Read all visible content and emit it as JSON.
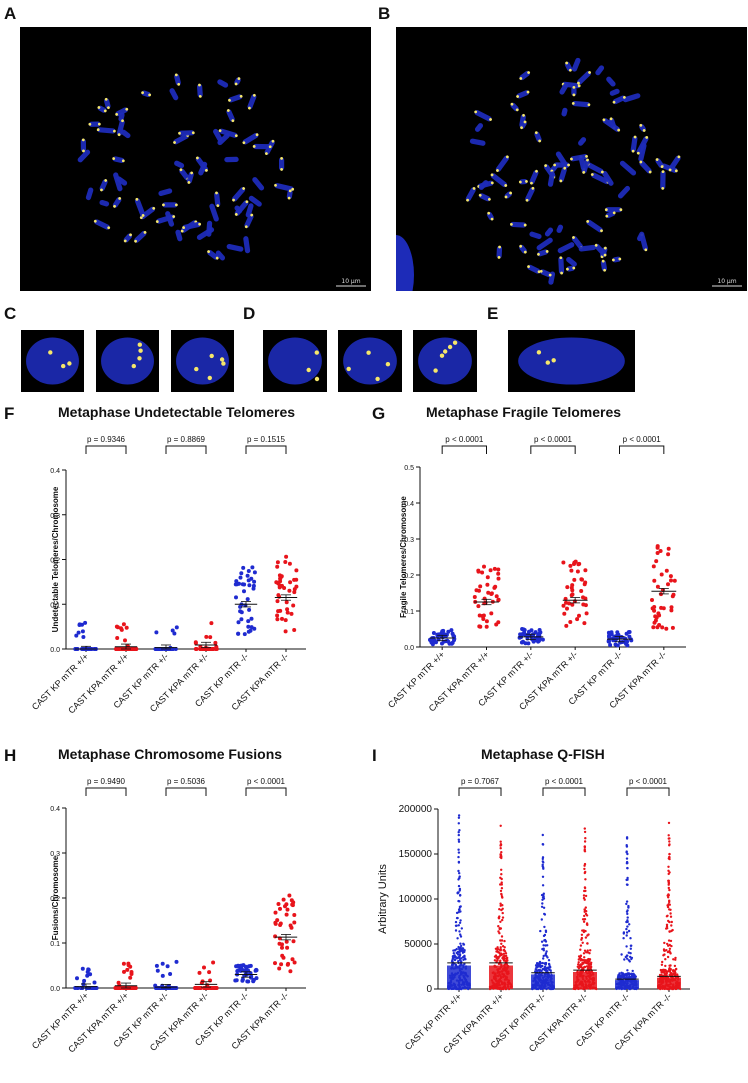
{
  "panels": {
    "A": "A",
    "B": "B",
    "C": "C",
    "D": "D",
    "E": "E",
    "F": "F",
    "G": "G",
    "H": "H",
    "I": "I"
  },
  "images": {
    "scale_label_a": "10 µm",
    "scale_label_b": "10 µm"
  },
  "colors": {
    "blue": "#1f2bd0",
    "red": "#e8141b",
    "telomere": "#f6e76a",
    "nucleus": "#1d2bb8"
  },
  "chart_data": [
    {
      "id": "F",
      "type": "scatter",
      "title": "Metaphase Undetectable Telomeres",
      "ylabel": "Undetectable Telomeres/Chromosome",
      "xlabel": "",
      "ylim": [
        0,
        0.4
      ],
      "yticks": [
        "0.0",
        "0.1",
        "0.2",
        "0.3",
        "0.4"
      ],
      "categories": [
        "CAST KP mTR +/+",
        "CAST KPA mTR +/+",
        "CAST KP mTR +/-",
        "CAST KPA mTR +/-",
        "CAST KP mTR -/-",
        "CAST KPA mTR -/-"
      ],
      "series_colors": [
        "blue",
        "red",
        "blue",
        "red",
        "blue",
        "red"
      ],
      "means": [
        0.0,
        0.005,
        0.003,
        0.009,
        0.1,
        0.115
      ],
      "comparisons": [
        {
          "pair": [
            0,
            1
          ],
          "label": "p = 0.9346"
        },
        {
          "pair": [
            2,
            3
          ],
          "label": "p = 0.8869"
        },
        {
          "pair": [
            4,
            5
          ],
          "label": "p = 0.1515"
        }
      ]
    },
    {
      "id": "G",
      "type": "scatter",
      "title": "Metaphase Fragile Telomeres",
      "ylabel": "Fragile Telomeres/Chromosome",
      "xlabel": "",
      "ylim": [
        0,
        0.5
      ],
      "yticks": [
        "0.0",
        "0.1",
        "0.2",
        "0.3",
        "0.4",
        "0.5"
      ],
      "categories": [
        "CAST KP mTR +/+",
        "CAST KPA mTR +/+",
        "CAST KP mTR +/-",
        "CAST KPA mTR +/-",
        "CAST KP mTR -/-",
        "CAST KPA mTR -/-"
      ],
      "series_colors": [
        "blue",
        "red",
        "blue",
        "red",
        "blue",
        "red"
      ],
      "means": [
        0.025,
        0.125,
        0.028,
        0.13,
        0.022,
        0.155
      ],
      "comparisons": [
        {
          "pair": [
            0,
            1
          ],
          "label": "p < 0.0001"
        },
        {
          "pair": [
            2,
            3
          ],
          "label": "p < 0.0001"
        },
        {
          "pair": [
            4,
            5
          ],
          "label": "p < 0.0001"
        }
      ]
    },
    {
      "id": "H",
      "type": "scatter",
      "title": "Metaphase Chromosome Fusions",
      "ylabel": "Fusions/Chromosome",
      "xlabel": "",
      "ylim": [
        0,
        0.4
      ],
      "yticks": [
        "0.0",
        "0.1",
        "0.2",
        "0.3",
        "0.4"
      ],
      "categories": [
        "CAST KP mTR +/+",
        "CAST KPA mTR +/+",
        "CAST KP mTR +/-",
        "CAST KPA mTR +/-",
        "CAST KP mTR -/-",
        "CAST KPA mTR -/-"
      ],
      "series_colors": [
        "blue",
        "red",
        "blue",
        "red",
        "blue",
        "red"
      ],
      "means": [
        0.003,
        0.005,
        0.002,
        0.008,
        0.03,
        0.113
      ],
      "comparisons": [
        {
          "pair": [
            0,
            1
          ],
          "label": "p = 0.9490"
        },
        {
          "pair": [
            2,
            3
          ],
          "label": "p = 0.5036"
        },
        {
          "pair": [
            4,
            5
          ],
          "label": "p < 0.0001"
        }
      ]
    },
    {
      "id": "I",
      "type": "scatter",
      "title": "Metaphase Q-FISH",
      "ylabel": "Arbitrary Units",
      "xlabel": "",
      "ylim": [
        0,
        200000
      ],
      "yticks": [
        "0",
        "50000",
        "100000",
        "150000",
        "200000"
      ],
      "categories": [
        "CAST KP mTR +/+",
        "CAST KPA mTR +/+",
        "CAST KP mTR +/-",
        "CAST KPA mTR +/-",
        "CAST KP mTR -/-",
        "CAST KPA mTR -/-"
      ],
      "series_colors": [
        "blue",
        "red",
        "blue",
        "red",
        "blue",
        "red"
      ],
      "means": [
        29000,
        29000,
        18000,
        21000,
        11000,
        14000
      ],
      "max_values": [
        195000,
        182000,
        172000,
        180000,
        170000,
        195000
      ],
      "comparisons": [
        {
          "pair": [
            0,
            1
          ],
          "label": "p = 0.7067"
        },
        {
          "pair": [
            2,
            3
          ],
          "label": "p < 0.0001"
        },
        {
          "pair": [
            4,
            5
          ],
          "label": "p < 0.0001"
        }
      ]
    }
  ]
}
